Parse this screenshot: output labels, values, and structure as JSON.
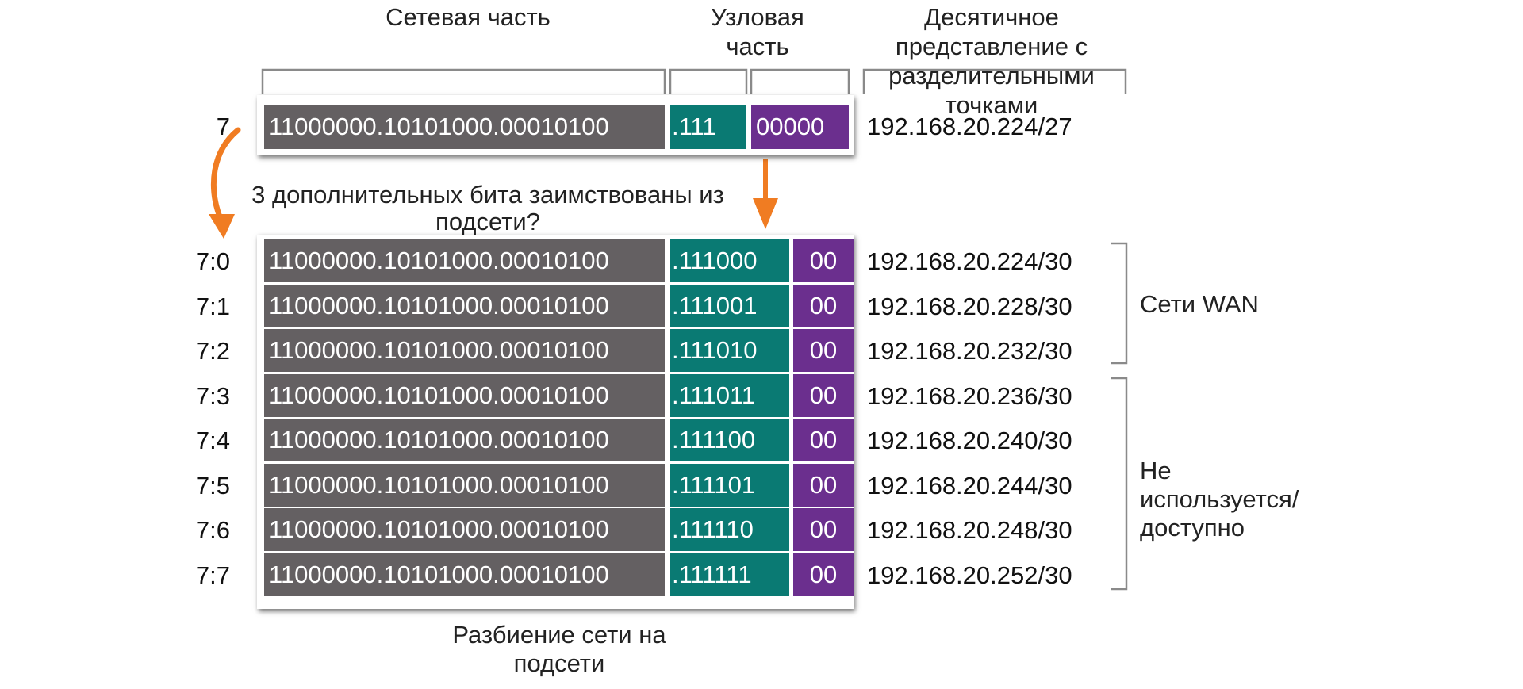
{
  "headers": {
    "network_part": "Сетевая часть",
    "host_part": "Узловая часть",
    "dotted_decimal": "Десятичное представление с разделительными точками"
  },
  "header_lines": {
    "host_part": [
      "Узловая",
      "часть"
    ],
    "dotted_decimal": [
      "Десятичное",
      "представление с",
      "разделительными",
      "точками"
    ]
  },
  "top_row": {
    "label": "7",
    "network_bits": "11000000.10101000.00010100",
    "subnet_bits": ".111",
    "host_bits": "00000",
    "dotted": "192.168.20.224/27"
  },
  "question": {
    "lines": [
      "3 дополнительных бита заимствованы из",
      "подсети?"
    ]
  },
  "rows": [
    {
      "label": "7:0",
      "network_bits": "11000000.10101000.00010100",
      "subnet_bits": ".111000",
      "host_bits": "00",
      "dotted": "192.168.20.224/30"
    },
    {
      "label": "7:1",
      "network_bits": "11000000.10101000.00010100",
      "subnet_bits": ".111001",
      "host_bits": "00",
      "dotted": "192.168.20.228/30"
    },
    {
      "label": "7:2",
      "network_bits": "11000000.10101000.00010100",
      "subnet_bits": ".111010",
      "host_bits": "00",
      "dotted": "192.168.20.232/30"
    },
    {
      "label": "7:3",
      "network_bits": "11000000.10101000.00010100",
      "subnet_bits": ".111011",
      "host_bits": "00",
      "dotted": "192.168.20.236/30"
    },
    {
      "label": "7:4",
      "network_bits": "11000000.10101000.00010100",
      "subnet_bits": ".111100",
      "host_bits": "00",
      "dotted": "192.168.20.240/30"
    },
    {
      "label": "7:5",
      "network_bits": "11000000.10101000.00010100",
      "subnet_bits": ".111101",
      "host_bits": "00",
      "dotted": "192.168.20.244/30"
    },
    {
      "label": "7:6",
      "network_bits": "11000000.10101000.00010100",
      "subnet_bits": ".111110",
      "host_bits": "00",
      "dotted": "192.168.20.248/30"
    },
    {
      "label": "7:7",
      "network_bits": "11000000.10101000.00010100",
      "subnet_bits": ".111111",
      "host_bits": "00",
      "dotted": "192.168.20.252/30"
    }
  ],
  "groups": {
    "wan": "Сети WAN",
    "unused_lines": [
      "Не",
      "используется/",
      "доступно"
    ]
  },
  "footer_lines": [
    "Разбиение сети на",
    "подсети"
  ],
  "colors": {
    "network": "#646062",
    "subnet": "#0a7a73",
    "host": "#6b2f8e",
    "arrow": "#f07c22",
    "bracket": "#8a8a8a"
  }
}
